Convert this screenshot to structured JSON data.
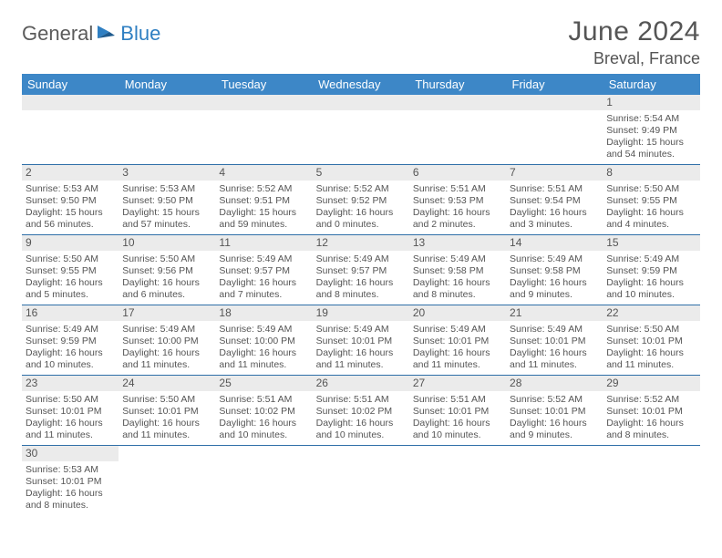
{
  "logo": {
    "word1": "General",
    "word2": "Blue"
  },
  "title": "June 2024",
  "location": "Breval, France",
  "colors": {
    "header_bg": "#3d87c7",
    "header_text": "#ffffff",
    "daybar_bg": "#ebebeb",
    "text": "#555555",
    "row_border": "#2f6fa8",
    "logo_gray": "#5b5b5b",
    "logo_blue": "#2f7fc2"
  },
  "daysOfWeek": [
    "Sunday",
    "Monday",
    "Tuesday",
    "Wednesday",
    "Thursday",
    "Friday",
    "Saturday"
  ],
  "weeks": [
    [
      null,
      null,
      null,
      null,
      null,
      null,
      {
        "n": "1",
        "sunrise": "5:54 AM",
        "sunset": "9:49 PM",
        "daylight": "15 hours and 54 minutes."
      }
    ],
    [
      {
        "n": "2",
        "sunrise": "5:53 AM",
        "sunset": "9:50 PM",
        "daylight": "15 hours and 56 minutes."
      },
      {
        "n": "3",
        "sunrise": "5:53 AM",
        "sunset": "9:50 PM",
        "daylight": "15 hours and 57 minutes."
      },
      {
        "n": "4",
        "sunrise": "5:52 AM",
        "sunset": "9:51 PM",
        "daylight": "15 hours and 59 minutes."
      },
      {
        "n": "5",
        "sunrise": "5:52 AM",
        "sunset": "9:52 PM",
        "daylight": "16 hours and 0 minutes."
      },
      {
        "n": "6",
        "sunrise": "5:51 AM",
        "sunset": "9:53 PM",
        "daylight": "16 hours and 2 minutes."
      },
      {
        "n": "7",
        "sunrise": "5:51 AM",
        "sunset": "9:54 PM",
        "daylight": "16 hours and 3 minutes."
      },
      {
        "n": "8",
        "sunrise": "5:50 AM",
        "sunset": "9:55 PM",
        "daylight": "16 hours and 4 minutes."
      }
    ],
    [
      {
        "n": "9",
        "sunrise": "5:50 AM",
        "sunset": "9:55 PM",
        "daylight": "16 hours and 5 minutes."
      },
      {
        "n": "10",
        "sunrise": "5:50 AM",
        "sunset": "9:56 PM",
        "daylight": "16 hours and 6 minutes."
      },
      {
        "n": "11",
        "sunrise": "5:49 AM",
        "sunset": "9:57 PM",
        "daylight": "16 hours and 7 minutes."
      },
      {
        "n": "12",
        "sunrise": "5:49 AM",
        "sunset": "9:57 PM",
        "daylight": "16 hours and 8 minutes."
      },
      {
        "n": "13",
        "sunrise": "5:49 AM",
        "sunset": "9:58 PM",
        "daylight": "16 hours and 8 minutes."
      },
      {
        "n": "14",
        "sunrise": "5:49 AM",
        "sunset": "9:58 PM",
        "daylight": "16 hours and 9 minutes."
      },
      {
        "n": "15",
        "sunrise": "5:49 AM",
        "sunset": "9:59 PM",
        "daylight": "16 hours and 10 minutes."
      }
    ],
    [
      {
        "n": "16",
        "sunrise": "5:49 AM",
        "sunset": "9:59 PM",
        "daylight": "16 hours and 10 minutes."
      },
      {
        "n": "17",
        "sunrise": "5:49 AM",
        "sunset": "10:00 PM",
        "daylight": "16 hours and 11 minutes."
      },
      {
        "n": "18",
        "sunrise": "5:49 AM",
        "sunset": "10:00 PM",
        "daylight": "16 hours and 11 minutes."
      },
      {
        "n": "19",
        "sunrise": "5:49 AM",
        "sunset": "10:01 PM",
        "daylight": "16 hours and 11 minutes."
      },
      {
        "n": "20",
        "sunrise": "5:49 AM",
        "sunset": "10:01 PM",
        "daylight": "16 hours and 11 minutes."
      },
      {
        "n": "21",
        "sunrise": "5:49 AM",
        "sunset": "10:01 PM",
        "daylight": "16 hours and 11 minutes."
      },
      {
        "n": "22",
        "sunrise": "5:50 AM",
        "sunset": "10:01 PM",
        "daylight": "16 hours and 11 minutes."
      }
    ],
    [
      {
        "n": "23",
        "sunrise": "5:50 AM",
        "sunset": "10:01 PM",
        "daylight": "16 hours and 11 minutes."
      },
      {
        "n": "24",
        "sunrise": "5:50 AM",
        "sunset": "10:01 PM",
        "daylight": "16 hours and 11 minutes."
      },
      {
        "n": "25",
        "sunrise": "5:51 AM",
        "sunset": "10:02 PM",
        "daylight": "16 hours and 10 minutes."
      },
      {
        "n": "26",
        "sunrise": "5:51 AM",
        "sunset": "10:02 PM",
        "daylight": "16 hours and 10 minutes."
      },
      {
        "n": "27",
        "sunrise": "5:51 AM",
        "sunset": "10:01 PM",
        "daylight": "16 hours and 10 minutes."
      },
      {
        "n": "28",
        "sunrise": "5:52 AM",
        "sunset": "10:01 PM",
        "daylight": "16 hours and 9 minutes."
      },
      {
        "n": "29",
        "sunrise": "5:52 AM",
        "sunset": "10:01 PM",
        "daylight": "16 hours and 8 minutes."
      }
    ],
    [
      {
        "n": "30",
        "sunrise": "5:53 AM",
        "sunset": "10:01 PM",
        "daylight": "16 hours and 8 minutes."
      },
      null,
      null,
      null,
      null,
      null,
      null
    ]
  ],
  "labels": {
    "sunrise": "Sunrise:",
    "sunset": "Sunset:",
    "daylight": "Daylight:"
  }
}
